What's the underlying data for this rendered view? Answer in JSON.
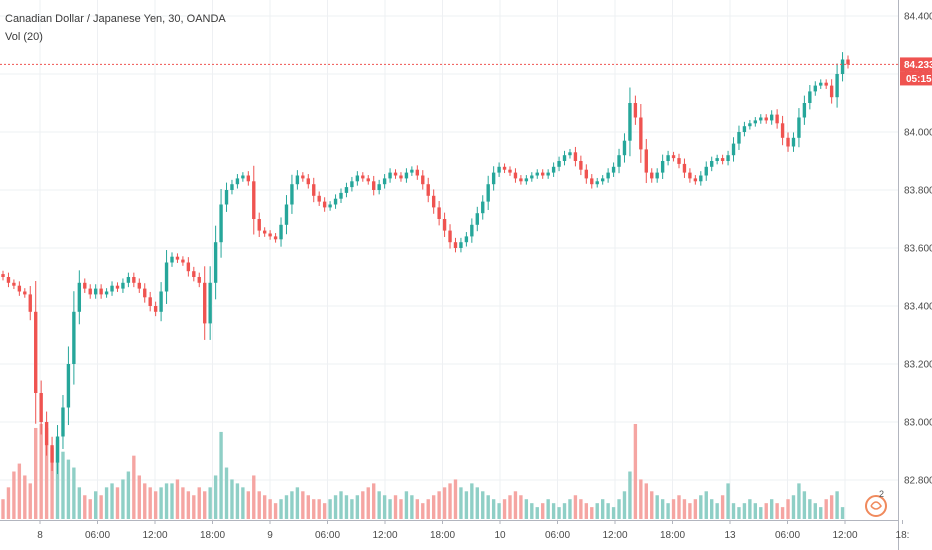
{
  "chart_data": {
    "type": "candlestick",
    "title": "Canadian Dollar / Japanese Yen, 30, OANDA",
    "indicator_label": "Vol (20)",
    "y_axis": {
      "ticks": [
        "84.400",
        "84.200",
        "84.000",
        "83.800",
        "83.600",
        "83.400",
        "83.200",
        "83.000",
        "82.800"
      ],
      "range": [
        82.7,
        84.45
      ]
    },
    "x_axis": {
      "ticks": [
        "8",
        "06:00",
        "12:00",
        "18:00",
        "9",
        "06:00",
        "12:00",
        "18:00",
        "10",
        "06:00",
        "12:00",
        "18:00",
        "13",
        "06:00",
        "12:00",
        "18:"
      ]
    },
    "last_price": {
      "value": 84.233,
      "label": "84.233",
      "countdown": "05:15"
    },
    "colors": {
      "up": "#26a69a",
      "down": "#ef5350",
      "vol_up": "#8fcfc6",
      "vol_down": "#f5a5a2",
      "grid": "#eef0f3",
      "price_line": "#ef5350"
    },
    "watermark_badge": "2",
    "series_close": [
      83.5,
      83.48,
      83.47,
      83.45,
      83.44,
      83.38,
      83.1,
      83.0,
      82.92,
      82.86,
      82.95,
      83.05,
      83.2,
      83.38,
      83.48,
      83.46,
      83.44,
      83.46,
      83.44,
      83.45,
      83.47,
      83.46,
      83.48,
      83.5,
      83.48,
      83.46,
      83.43,
      83.4,
      83.38,
      83.45,
      83.55,
      83.57,
      83.56,
      83.55,
      83.52,
      83.5,
      83.48,
      83.34,
      83.48,
      83.62,
      83.75,
      83.8,
      83.82,
      83.84,
      83.85,
      83.83,
      83.7,
      83.66,
      83.65,
      83.64,
      83.63,
      83.68,
      83.75,
      83.82,
      83.85,
      83.84,
      83.82,
      83.78,
      83.76,
      83.74,
      83.75,
      83.77,
      83.79,
      83.81,
      83.83,
      83.85,
      83.84,
      83.83,
      83.8,
      83.82,
      83.84,
      83.86,
      83.85,
      83.84,
      83.86,
      83.87,
      83.85,
      83.82,
      83.78,
      83.74,
      83.7,
      83.66,
      83.62,
      83.6,
      83.62,
      83.64,
      83.68,
      83.72,
      83.76,
      83.82,
      83.86,
      83.88,
      83.87,
      83.86,
      83.84,
      83.83,
      83.84,
      83.85,
      83.86,
      83.85,
      83.86,
      83.88,
      83.9,
      83.92,
      83.93,
      83.9,
      83.87,
      83.84,
      83.82,
      83.83,
      83.84,
      83.86,
      83.88,
      83.92,
      83.97,
      84.1,
      84.05,
      83.94,
      83.86,
      83.84,
      83.86,
      83.9,
      83.92,
      83.91,
      83.89,
      83.86,
      83.84,
      83.83,
      83.85,
      83.88,
      83.9,
      83.91,
      83.9,
      83.92,
      83.96,
      84.0,
      84.02,
      84.03,
      84.04,
      84.05,
      84.04,
      84.06,
      84.03,
      83.98,
      83.95,
      83.98,
      84.05,
      84.1,
      84.14,
      84.16,
      84.17,
      84.16,
      84.12,
      84.2,
      84.25,
      84.233
    ],
    "series_volume": [
      5,
      8,
      12,
      14,
      11,
      9,
      23,
      24,
      23,
      18,
      20,
      17,
      15,
      13,
      8,
      6,
      5,
      7,
      6,
      8,
      9,
      8,
      10,
      12,
      16,
      11,
      9,
      8,
      7,
      8,
      9,
      9,
      10,
      8,
      7,
      6,
      8,
      7,
      8,
      11,
      22,
      13,
      10,
      9,
      8,
      7,
      11,
      7,
      6,
      5,
      4,
      5,
      6,
      7,
      8,
      7,
      6,
      5,
      5,
      4,
      5,
      6,
      7,
      6,
      5,
      6,
      7,
      8,
      9,
      7,
      6,
      5,
      6,
      5,
      7,
      6,
      5,
      4,
      5,
      6,
      7,
      8,
      9,
      10,
      8,
      7,
      9,
      8,
      7,
      6,
      5,
      4,
      5,
      6,
      7,
      6,
      5,
      4,
      3,
      4,
      5,
      4,
      3,
      4,
      5,
      6,
      5,
      4,
      3,
      4,
      5,
      4,
      3,
      5,
      7,
      12,
      24,
      10,
      9,
      7,
      6,
      5,
      4,
      5,
      6,
      5,
      4,
      5,
      6,
      7,
      5,
      4,
      6,
      9,
      4,
      3,
      4,
      5,
      4,
      3,
      4,
      5,
      4,
      3,
      5,
      6,
      9,
      7,
      5,
      4,
      3,
      5,
      6,
      7,
      3
    ]
  }
}
